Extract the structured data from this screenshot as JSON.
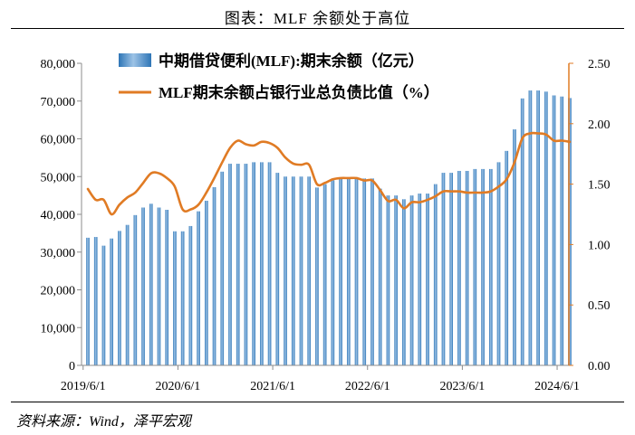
{
  "title": "图表：MLF 余额处于高位",
  "source": "资料来源：Wind，泽平宏观",
  "chart_data": {
    "type": "bar+line",
    "x_tick_labels": [
      "2019/6/1",
      "2020/6/1",
      "2021/6/1",
      "2022/6/1",
      "2023/6/1",
      "2024/6/1"
    ],
    "left_axis": {
      "ylim": [
        0,
        80000
      ],
      "ticks": [
        "0",
        "10,000",
        "20,000",
        "30,000",
        "40,000",
        "50,000",
        "60,000",
        "70,000",
        "80,000"
      ]
    },
    "right_axis": {
      "ylim": [
        0,
        2.5
      ],
      "ticks": [
        "0.00",
        "0.50",
        "1.00",
        "1.50",
        "2.00",
        "2.50"
      ],
      "color": "#E07B24"
    },
    "series": [
      {
        "name": "中期借贷便利(MLF):期末余额（亿元）",
        "type": "bar",
        "axis": "left",
        "color": "#5B9BD5",
        "x_start": "2019-06",
        "x_step": "1 month",
        "values": [
          33800,
          34000,
          31700,
          33600,
          35600,
          37200,
          39800,
          41800,
          42800,
          41800,
          41200,
          35500,
          35500,
          36900,
          40800,
          43600,
          47200,
          51300,
          53400,
          53400,
          53400,
          53800,
          53800,
          53800,
          51000,
          50000,
          50000,
          50000,
          50000,
          47100,
          48000,
          49000,
          49500,
          49500,
          49500,
          49500,
          49500,
          46800,
          45000,
          45000,
          44000,
          45000,
          45500,
          45500,
          48000,
          51000,
          51000,
          51500,
          51500,
          52000,
          52000,
          52000,
          53800,
          56800,
          62500,
          70700,
          72800,
          72800,
          72500,
          71500,
          71200,
          70800
        ]
      },
      {
        "name": "MLF期末余额占银行业总负债比值（%）",
        "type": "line",
        "axis": "right",
        "color": "#E07B24",
        "x_start": "2019-06",
        "x_step": "1 month",
        "values": [
          1.46,
          1.37,
          1.37,
          1.25,
          1.33,
          1.39,
          1.43,
          1.51,
          1.59,
          1.59,
          1.55,
          1.48,
          1.29,
          1.29,
          1.33,
          1.43,
          1.55,
          1.68,
          1.8,
          1.86,
          1.83,
          1.82,
          1.85,
          1.84,
          1.8,
          1.72,
          1.67,
          1.66,
          1.66,
          1.5,
          1.51,
          1.54,
          1.55,
          1.55,
          1.55,
          1.53,
          1.53,
          1.45,
          1.36,
          1.37,
          1.3,
          1.35,
          1.35,
          1.37,
          1.4,
          1.44,
          1.44,
          1.44,
          1.43,
          1.43,
          1.43,
          1.44,
          1.48,
          1.54,
          1.68,
          1.88,
          1.92,
          1.92,
          1.91,
          1.86,
          1.86,
          1.85
        ]
      }
    ],
    "legend_position": "top-center",
    "grid": false
  }
}
